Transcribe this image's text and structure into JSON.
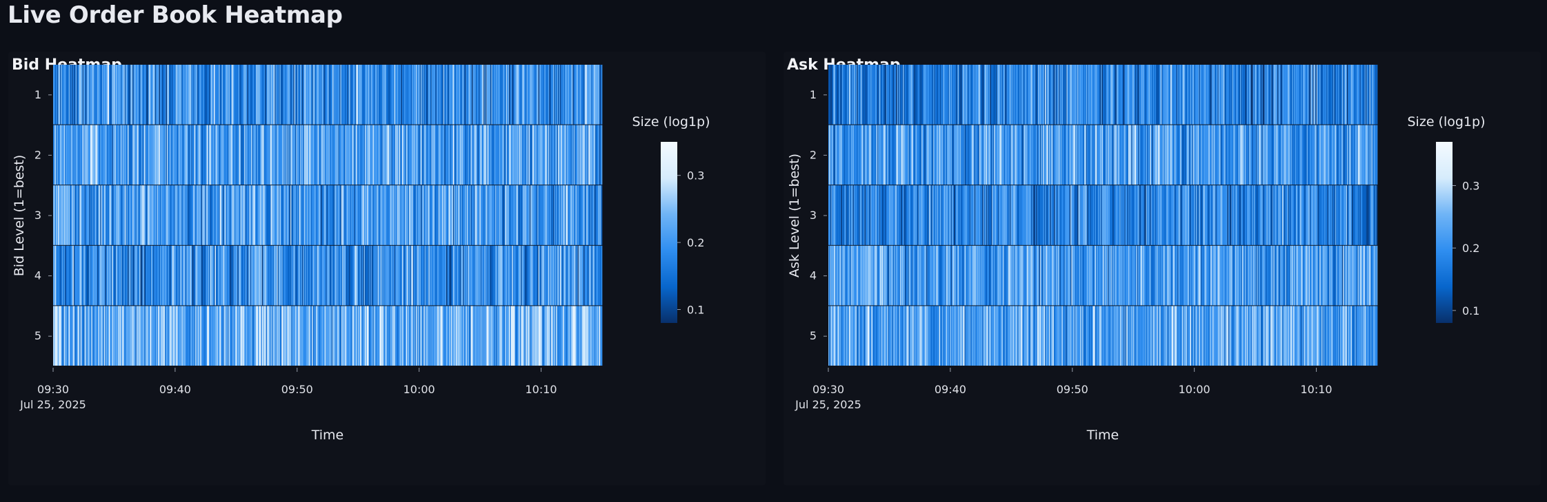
{
  "page": {
    "title": "Live Order Book Heatmap",
    "background": "#0c0f17",
    "panel_background": "#0f121a"
  },
  "chart_data": [
    {
      "type": "heatmap",
      "title": "Bid Heatmap",
      "xlabel": "Time",
      "ylabel": "Bid Level (1=best)",
      "x_range": [
        "2025-07-25 09:30",
        "2025-07-25 10:15"
      ],
      "x_ticks": [
        "09:30",
        "09:40",
        "09:50",
        "10:00",
        "10:10"
      ],
      "x_tick_sublabel": "Jul 25, 2025",
      "y_categories": [
        "1",
        "2",
        "3",
        "4",
        "5"
      ],
      "colorbar_title": "Size (log1p)",
      "colorbar_ticks": [
        "0.1",
        "0.2",
        "0.3"
      ],
      "color_range": [
        0.08,
        0.35
      ],
      "colorscale": [
        "#08306b",
        "#0866cc",
        "#2f8ef0",
        "#6fb4f6",
        "#d6ecfc",
        "#f4faff"
      ],
      "cell_value_summary": {
        "level_means": [
          0.19,
          0.21,
          0.2,
          0.19,
          0.23
        ],
        "noise": "fine-grained random variation across time for each level"
      },
      "legend": "colorbar right",
      "grid": false
    },
    {
      "type": "heatmap",
      "title": "Ask Heatmap",
      "xlabel": "Time",
      "ylabel": "Ask Level (1=best)",
      "x_range": [
        "2025-07-25 09:30",
        "2025-07-25 10:15"
      ],
      "x_ticks": [
        "09:30",
        "09:40",
        "09:50",
        "10:00",
        "10:10"
      ],
      "x_tick_sublabel": "Jul 25, 2025",
      "y_categories": [
        "1",
        "2",
        "3",
        "4",
        "5"
      ],
      "colorbar_title": "Size (log1p)",
      "colorbar_ticks": [
        "0.1",
        "0.2",
        "0.3"
      ],
      "color_range": [
        0.08,
        0.37
      ],
      "colorscale": [
        "#08306b",
        "#0866cc",
        "#2f8ef0",
        "#6fb4f6",
        "#d6ecfc",
        "#f4faff"
      ],
      "cell_value_summary": {
        "level_means": [
          0.18,
          0.21,
          0.18,
          0.21,
          0.22
        ],
        "noise": "fine-grained random variation across time for each level"
      },
      "legend": "colorbar right",
      "grid": false
    }
  ]
}
